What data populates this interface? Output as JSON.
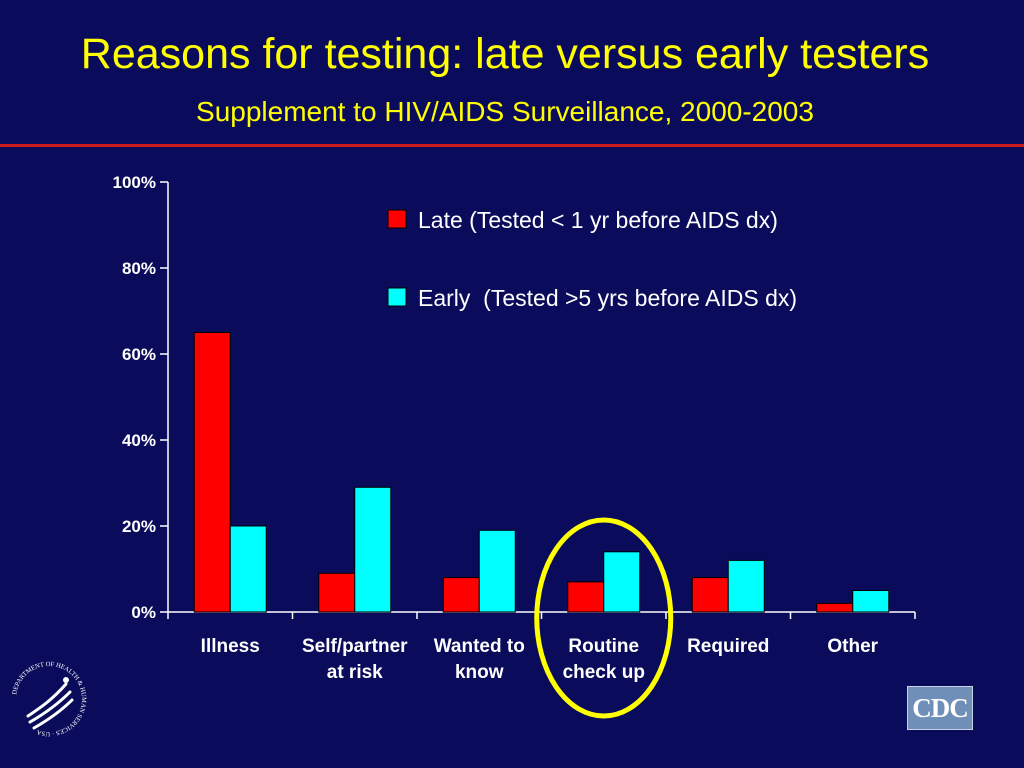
{
  "slide": {
    "title": "Reasons for testing: late versus early testers",
    "subtitle": "Supplement to HIV/AIDS Surveillance, 2000-2003",
    "cdc_logo_text": "CDC",
    "hhs_seal_icon": "hhs-eagle-seal-icon",
    "hhs_seal_text": "DEPARTMENT OF HEALTH & HUMAN SERVICES · USA"
  },
  "colors": {
    "background": "#0b0b5c",
    "title": "#ffff00",
    "rule": "#cc1a1a",
    "late": "#ff0000",
    "early": "#00ffff",
    "highlight_circle": "#ffff00"
  },
  "chart_data": {
    "type": "bar",
    "categories": [
      [
        "Illness"
      ],
      [
        "Self/partner",
        "at risk"
      ],
      [
        "Wanted to",
        "know"
      ],
      [
        "Routine",
        "check up"
      ],
      [
        "Required"
      ],
      [
        "Other"
      ]
    ],
    "series": [
      {
        "name": "Late (Tested < 1 yr before AIDS dx)",
        "values": [
          65,
          9,
          8,
          7,
          8,
          2
        ]
      },
      {
        "name": "Early  (Tested >5 yrs before AIDS dx)",
        "values": [
          20,
          29,
          19,
          14,
          12,
          5
        ]
      }
    ],
    "ylim": [
      0,
      100
    ],
    "yticks": [
      "0%",
      "20%",
      "40%",
      "60%",
      "80%",
      "100%"
    ],
    "ytick_values": [
      0,
      20,
      40,
      60,
      80,
      100
    ],
    "legend_position": "top-right",
    "grid": false,
    "highlighted_category": "Routine check up"
  }
}
